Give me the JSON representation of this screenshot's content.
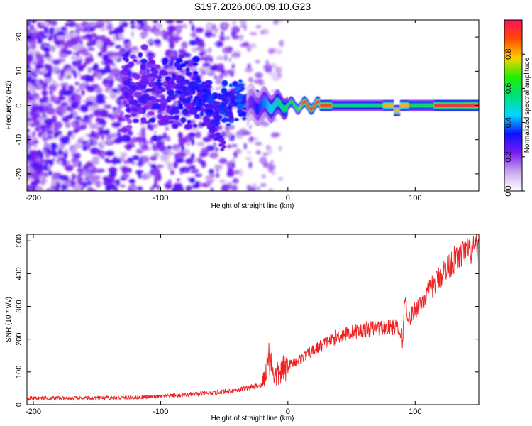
{
  "chart_data": [
    {
      "type": "heatmap",
      "title": "S197.2026.060.09.10.G23",
      "xlabel": "Height of straight line (km)",
      "ylabel": "Frequency (Hz)",
      "xlim": [
        -205,
        150
      ],
      "ylim": [
        -25,
        25
      ],
      "xticks": [
        -200,
        -100,
        0,
        100
      ],
      "yticks": [
        -20,
        -10,
        0,
        10,
        20
      ],
      "colorbar": {
        "label": "Normalized spectral amplitude",
        "range": [
          0.0,
          1.0
        ],
        "ticks": [
          "0.0",
          "0.2",
          "0.4",
          "0.6",
          "0.8"
        ],
        "stops": [
          "#ffffff",
          "#c9a8f0",
          "#7a1cf2",
          "#1010ff",
          "#00d8ff",
          "#00e07a",
          "#22ee00",
          "#ffd000",
          "#ff4a00",
          "#ff1060"
        ]
      },
      "description_of_signal": [
        {
          "x": -200,
          "freq": 0,
          "band_hz": 25,
          "amp": 0.15
        },
        {
          "x": -120,
          "freq": 4,
          "band_hz": 8,
          "amp": 0.2
        },
        {
          "x": -60,
          "freq": 2,
          "band_hz": 5,
          "amp": 0.25
        },
        {
          "x": -25,
          "freq": 0,
          "band_hz": 2,
          "amp": 0.4
        },
        {
          "x": 0,
          "freq": 0,
          "band_hz": 1,
          "amp": 0.6
        },
        {
          "x": 20,
          "freq": 0,
          "band_hz": 1,
          "amp": 0.95
        },
        {
          "x": 60,
          "freq": 0,
          "band_hz": 1,
          "amp": 0.6
        },
        {
          "x": 85,
          "freq": 0,
          "band_hz": 1,
          "amp": 0.9
        },
        {
          "x": 130,
          "freq": 0,
          "band_hz": 1,
          "amp": 0.95
        }
      ]
    },
    {
      "type": "line",
      "title": "",
      "xlabel": "Height of straight line (km)",
      "ylabel": "SNR (10 * v/v)",
      "xlim": [
        -205,
        150
      ],
      "ylim": [
        0,
        520
      ],
      "xticks": [
        -200,
        -100,
        0,
        100
      ],
      "yticks": [
        0,
        100,
        200,
        300,
        400,
        500
      ],
      "color": "#ee2222",
      "series": [
        {
          "name": "SNR",
          "x": [
            -205,
            -180,
            -150,
            -120,
            -100,
            -80,
            -60,
            -40,
            -20,
            -15,
            -10,
            0,
            10,
            20,
            30,
            40,
            50,
            60,
            70,
            80,
            85,
            90,
            92,
            95,
            100,
            110,
            120,
            130,
            140,
            150
          ],
          "y": [
            20,
            20,
            20,
            22,
            25,
            30,
            35,
            45,
            60,
            150,
            85,
            120,
            140,
            165,
            190,
            210,
            220,
            228,
            235,
            235,
            240,
            200,
            330,
            260,
            290,
            340,
            395,
            440,
            465,
            475
          ]
        }
      ]
    }
  ]
}
